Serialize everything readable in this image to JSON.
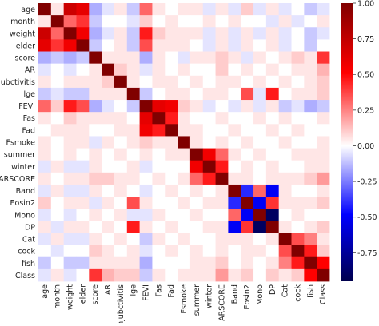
{
  "chart_data": {
    "type": "heatmap",
    "title": "",
    "xlabel": "",
    "ylabel": "",
    "variables": [
      "age",
      "month",
      "weight",
      "elder",
      "score",
      "AR",
      "conjubctivitis",
      "lge",
      "FEVI",
      "Fas",
      "Fad",
      "Fsmoke",
      "summer",
      "winter",
      "ARSCORE",
      "Band",
      "Eosin2",
      "Mono",
      "DP",
      "Cat",
      "cock",
      "fish",
      "Class"
    ],
    "row_tick_labels": [
      "age",
      "month",
      "weight",
      "elder",
      "score",
      "AR",
      "conjubctivitis",
      "lge",
      "FEVI",
      "Fas",
      "Fad",
      "Fsmoke",
      "summer",
      "winter",
      "ARSCORE",
      "Band",
      "Eosin2",
      "Mono",
      "DP",
      "Cat",
      "cock",
      "fish",
      "Class"
    ],
    "col_tick_labels": [
      "age",
      "month",
      "weight",
      "elder",
      "score",
      "AR",
      "conjubctivitis",
      "lge",
      "FEVI",
      "Fas",
      "Fad",
      "Fsmoke",
      "summer",
      "winter",
      "ARSCORE",
      "Band",
      "Eosin2",
      "Mono",
      "DP",
      "Cat",
      "cock",
      "fish",
      "Class"
    ],
    "colormap": "seismic",
    "vmin": -0.95,
    "vmax": 1.0,
    "colorbar_ticks": [
      1.0,
      0.75,
      0.5,
      0.25,
      0.0,
      -0.25,
      -0.5,
      -0.75
    ],
    "colorbar_tick_labels": [
      "1.00",
      "0.75",
      "0.50",
      "0.25",
      "0.00",
      "-0.25",
      "-0.50",
      "-0.75"
    ],
    "values": [
      [
        1.0,
        0.05,
        0.7,
        0.6,
        -0.15,
        -0.05,
        0.05,
        -0.1,
        0.3,
        0.05,
        0.0,
        0.05,
        0.05,
        -0.05,
        0.05,
        -0.05,
        0.1,
        -0.05,
        0.05,
        -0.05,
        0.0,
        -0.1,
        -0.05
      ],
      [
        0.05,
        1.0,
        0.3,
        0.4,
        -0.1,
        0.0,
        0.0,
        -0.05,
        0.1,
        0.0,
        0.05,
        0.0,
        0.0,
        0.05,
        0.0,
        0.05,
        0.0,
        0.0,
        -0.05,
        0.05,
        -0.05,
        0.0,
        0.05
      ],
      [
        0.7,
        0.3,
        1.0,
        0.55,
        -0.15,
        -0.05,
        0.05,
        -0.1,
        0.45,
        0.1,
        0.05,
        0.05,
        0.05,
        -0.05,
        0.05,
        -0.05,
        0.05,
        -0.05,
        0.05,
        -0.05,
        0.0,
        -0.1,
        -0.05
      ],
      [
        0.6,
        0.4,
        0.55,
        1.0,
        -0.1,
        0.0,
        0.05,
        -0.1,
        0.35,
        0.05,
        0.05,
        0.05,
        0.0,
        -0.05,
        0.05,
        -0.05,
        0.05,
        0.0,
        0.05,
        -0.05,
        0.0,
        -0.1,
        0.0
      ],
      [
        -0.15,
        -0.1,
        -0.15,
        -0.1,
        1.0,
        0.05,
        0.05,
        0.05,
        -0.15,
        0.05,
        0.0,
        -0.05,
        0.05,
        0.05,
        0.1,
        0.05,
        -0.05,
        0.05,
        0.0,
        0.05,
        0.1,
        0.05,
        0.4
      ],
      [
        -0.05,
        0.0,
        -0.05,
        0.0,
        0.05,
        1.0,
        0.1,
        0.05,
        -0.05,
        0.05,
        0.0,
        0.05,
        0.0,
        0.0,
        0.1,
        0.0,
        0.05,
        0.0,
        0.05,
        0.0,
        0.05,
        0.05,
        0.15
      ],
      [
        0.05,
        0.0,
        0.05,
        0.05,
        0.05,
        0.1,
        1.0,
        0.05,
        0.0,
        0.05,
        0.05,
        0.0,
        0.05,
        0.0,
        0.05,
        0.05,
        0.0,
        0.05,
        0.0,
        0.05,
        0.0,
        0.05,
        0.1
      ],
      [
        -0.1,
        -0.05,
        -0.1,
        -0.1,
        0.05,
        0.05,
        0.05,
        1.0,
        -0.1,
        0.0,
        0.05,
        0.05,
        0.0,
        0.05,
        0.05,
        0.0,
        0.35,
        -0.05,
        0.45,
        0.0,
        0.05,
        0.05,
        0.1
      ],
      [
        0.3,
        0.1,
        0.45,
        0.35,
        -0.15,
        -0.05,
        0.0,
        -0.1,
        1.0,
        0.6,
        0.55,
        0.1,
        0.05,
        -0.05,
        0.0,
        -0.05,
        0.05,
        -0.05,
        0.05,
        -0.1,
        -0.05,
        -0.15,
        -0.1
      ],
      [
        0.05,
        0.0,
        0.1,
        0.05,
        0.05,
        0.05,
        0.05,
        0.0,
        0.6,
        1.0,
        0.45,
        0.05,
        0.0,
        0.0,
        0.05,
        0.0,
        0.0,
        0.05,
        0.0,
        0.05,
        0.0,
        0.0,
        0.05
      ],
      [
        0.0,
        0.05,
        0.05,
        0.05,
        0.0,
        0.0,
        0.05,
        0.05,
        0.55,
        0.45,
        1.0,
        0.05,
        0.05,
        0.0,
        0.0,
        0.05,
        0.0,
        0.0,
        0.05,
        0.0,
        0.05,
        0.0,
        0.0
      ],
      [
        0.05,
        0.0,
        0.05,
        0.05,
        -0.05,
        0.05,
        0.0,
        0.05,
        0.1,
        0.05,
        0.05,
        1.0,
        0.05,
        0.0,
        0.05,
        0.0,
        0.05,
        0.0,
        0.0,
        0.05,
        0.0,
        0.0,
        0.05
      ],
      [
        0.05,
        0.0,
        0.05,
        0.0,
        0.05,
        0.0,
        0.05,
        0.0,
        0.05,
        0.0,
        0.05,
        0.05,
        1.0,
        0.55,
        0.3,
        0.05,
        0.0,
        0.05,
        0.0,
        0.0,
        0.05,
        0.05,
        0.05
      ],
      [
        -0.05,
        0.05,
        -0.05,
        -0.05,
        0.05,
        0.0,
        0.0,
        0.05,
        -0.05,
        0.0,
        0.0,
        0.0,
        0.55,
        1.0,
        0.45,
        0.0,
        0.05,
        0.0,
        0.05,
        0.0,
        0.0,
        0.05,
        0.05
      ],
      [
        0.05,
        0.0,
        0.05,
        0.05,
        0.1,
        0.1,
        0.05,
        0.05,
        0.0,
        0.05,
        0.0,
        0.05,
        0.3,
        0.45,
        1.0,
        0.05,
        0.05,
        0.0,
        0.05,
        0.05,
        0.05,
        0.1,
        0.2
      ],
      [
        -0.05,
        0.05,
        -0.05,
        -0.05,
        0.05,
        0.0,
        0.05,
        0.0,
        -0.05,
        0.0,
        0.05,
        0.0,
        0.05,
        0.0,
        0.05,
        1.0,
        -0.4,
        0.3,
        -0.5,
        0.05,
        0.0,
        0.0,
        0.05
      ],
      [
        0.1,
        0.0,
        0.05,
        0.05,
        -0.05,
        0.05,
        0.0,
        0.35,
        0.05,
        0.0,
        0.0,
        0.05,
        0.0,
        0.05,
        0.05,
        -0.4,
        1.0,
        -0.5,
        0.4,
        0.05,
        0.05,
        0.05,
        0.1
      ],
      [
        -0.05,
        0.0,
        -0.05,
        0.0,
        0.05,
        0.0,
        0.05,
        -0.05,
        -0.05,
        0.05,
        0.0,
        0.0,
        0.05,
        0.0,
        0.0,
        0.3,
        -0.5,
        1.0,
        -0.9,
        0.0,
        0.05,
        0.0,
        0.0
      ],
      [
        0.05,
        -0.05,
        0.05,
        0.05,
        0.0,
        0.05,
        0.0,
        0.45,
        0.05,
        0.0,
        0.05,
        0.0,
        0.0,
        0.05,
        0.05,
        -0.5,
        0.4,
        -0.9,
        1.0,
        0.05,
        0.0,
        0.05,
        0.1
      ],
      [
        -0.05,
        0.05,
        -0.05,
        -0.05,
        0.05,
        0.0,
        0.05,
        0.0,
        -0.1,
        0.05,
        0.0,
        0.05,
        0.0,
        0.0,
        0.05,
        0.05,
        0.05,
        0.0,
        0.05,
        1.0,
        0.35,
        0.25,
        0.05
      ],
      [
        0.0,
        -0.05,
        0.0,
        0.0,
        0.1,
        0.05,
        0.0,
        0.05,
        -0.05,
        0.0,
        0.05,
        0.0,
        0.05,
        0.0,
        0.05,
        0.0,
        0.05,
        0.05,
        0.0,
        0.35,
        1.0,
        0.45,
        0.1
      ],
      [
        -0.1,
        0.0,
        -0.1,
        -0.1,
        0.05,
        0.05,
        0.05,
        0.05,
        -0.15,
        0.0,
        0.0,
        0.0,
        0.05,
        0.05,
        0.1,
        0.0,
        0.05,
        0.0,
        0.05,
        0.25,
        0.45,
        1.0,
        0.5
      ],
      [
        -0.05,
        0.05,
        -0.05,
        0.0,
        0.4,
        0.15,
        0.1,
        0.1,
        -0.1,
        0.05,
        0.0,
        0.05,
        0.05,
        0.05,
        0.2,
        0.05,
        0.1,
        0.0,
        0.1,
        0.05,
        0.1,
        0.5,
        1.0
      ]
    ]
  }
}
